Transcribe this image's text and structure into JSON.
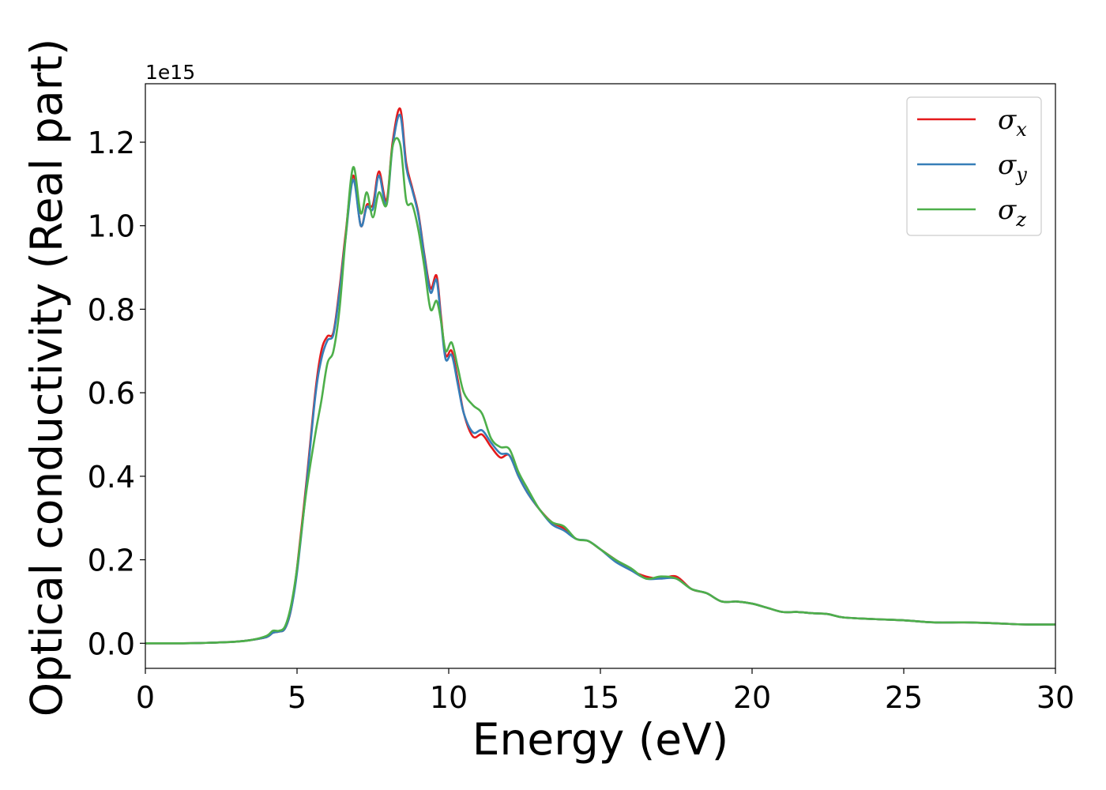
{
  "chart_data": {
    "type": "line",
    "xlabel": "Energy (eV)",
    "ylabel": "Optical conductivity (Real part)",
    "y_offset_label": "1e15",
    "xlim": [
      0,
      30
    ],
    "ylim": [
      -0.06,
      1.34
    ],
    "x_ticks": [
      0,
      5,
      10,
      15,
      20,
      25,
      30
    ],
    "x_tick_labels": [
      "0",
      "5",
      "10",
      "15",
      "20",
      "25",
      "30"
    ],
    "y_ticks": [
      0.0,
      0.2,
      0.4,
      0.6,
      0.8,
      1.0,
      1.2
    ],
    "y_tick_labels": [
      "0.0",
      "0.2",
      "0.4",
      "0.6",
      "0.8",
      "1.0",
      "1.2"
    ],
    "grid": false,
    "legend_position": "top-right",
    "series": [
      {
        "name": "σx",
        "name_base": "σ",
        "name_sub": "x",
        "color": "#e41a1c",
        "x": [
          0,
          1,
          2,
          3,
          3.5,
          4.0,
          4.2,
          4.4,
          4.6,
          4.8,
          5.0,
          5.3,
          5.6,
          5.8,
          6.0,
          6.2,
          6.4,
          6.6,
          6.85,
          7.1,
          7.3,
          7.5,
          7.7,
          7.95,
          8.15,
          8.4,
          8.6,
          8.8,
          9.0,
          9.2,
          9.4,
          9.6,
          9.75,
          9.9,
          10.1,
          10.3,
          10.5,
          10.8,
          11.1,
          11.4,
          11.7,
          12.0,
          12.3,
          12.6,
          13.0,
          13.4,
          13.8,
          14.2,
          14.6,
          15.0,
          15.5,
          16.0,
          16.5,
          17.0,
          17.5,
          18.0,
          18.5,
          19.0,
          19.5,
          20.0,
          20.5,
          21.0,
          21.5,
          22.0,
          22.5,
          23.0,
          24.0,
          25.0,
          26.0,
          27.0,
          28.0,
          29.0,
          30.0
        ],
        "values": [
          0.0,
          0.0,
          0.001,
          0.004,
          0.008,
          0.015,
          0.025,
          0.028,
          0.035,
          0.08,
          0.18,
          0.38,
          0.6,
          0.7,
          0.735,
          0.745,
          0.85,
          0.98,
          1.12,
          1.0,
          1.05,
          1.05,
          1.13,
          1.06,
          1.2,
          1.28,
          1.15,
          1.09,
          1.03,
          0.93,
          0.85,
          0.88,
          0.78,
          0.69,
          0.7,
          0.63,
          0.55,
          0.495,
          0.5,
          0.47,
          0.445,
          0.45,
          0.4,
          0.36,
          0.32,
          0.29,
          0.275,
          0.25,
          0.245,
          0.225,
          0.2,
          0.175,
          0.16,
          0.155,
          0.16,
          0.13,
          0.12,
          0.1,
          0.1,
          0.095,
          0.085,
          0.075,
          0.075,
          0.072,
          0.07,
          0.062,
          0.058,
          0.055,
          0.05,
          0.05,
          0.048,
          0.045,
          0.045
        ]
      },
      {
        "name": "σy",
        "name_base": "σ",
        "name_sub": "y",
        "color": "#377eb8",
        "x": [
          0,
          1,
          2,
          3,
          3.5,
          4.0,
          4.2,
          4.4,
          4.6,
          4.8,
          5.0,
          5.3,
          5.6,
          5.8,
          6.0,
          6.2,
          6.4,
          6.6,
          6.85,
          7.1,
          7.3,
          7.5,
          7.7,
          7.95,
          8.15,
          8.4,
          8.6,
          8.8,
          9.0,
          9.2,
          9.4,
          9.6,
          9.75,
          9.9,
          10.1,
          10.3,
          10.5,
          10.8,
          11.1,
          11.4,
          11.7,
          12.0,
          12.3,
          12.6,
          13.0,
          13.4,
          13.8,
          14.2,
          14.6,
          15.0,
          15.5,
          16.0,
          16.5,
          17.0,
          17.5,
          18.0,
          18.5,
          19.0,
          19.5,
          20.0,
          20.5,
          21.0,
          21.5,
          22.0,
          22.5,
          23.0,
          24.0,
          25.0,
          26.0,
          27.0,
          28.0,
          29.0,
          30.0
        ],
        "values": [
          0.0,
          0.0,
          0.001,
          0.004,
          0.008,
          0.015,
          0.025,
          0.028,
          0.035,
          0.08,
          0.17,
          0.37,
          0.59,
          0.68,
          0.725,
          0.74,
          0.84,
          0.97,
          1.11,
          1.0,
          1.045,
          1.04,
          1.12,
          1.05,
          1.19,
          1.265,
          1.14,
          1.085,
          1.025,
          0.925,
          0.84,
          0.87,
          0.77,
          0.68,
          0.69,
          0.62,
          0.55,
          0.505,
          0.51,
          0.48,
          0.455,
          0.45,
          0.4,
          0.36,
          0.32,
          0.285,
          0.27,
          0.25,
          0.245,
          0.225,
          0.195,
          0.175,
          0.155,
          0.155,
          0.155,
          0.13,
          0.12,
          0.1,
          0.1,
          0.095,
          0.085,
          0.075,
          0.075,
          0.072,
          0.07,
          0.062,
          0.058,
          0.055,
          0.05,
          0.05,
          0.048,
          0.045,
          0.045
        ]
      },
      {
        "name": "σz",
        "name_base": "σ",
        "name_sub": "z",
        "color": "#4daf4a",
        "x": [
          0,
          1,
          2,
          3,
          3.5,
          4.0,
          4.2,
          4.4,
          4.6,
          4.8,
          5.0,
          5.3,
          5.6,
          5.8,
          6.0,
          6.2,
          6.4,
          6.6,
          6.85,
          7.1,
          7.3,
          7.5,
          7.7,
          7.95,
          8.15,
          8.4,
          8.6,
          8.8,
          9.0,
          9.2,
          9.4,
          9.6,
          9.75,
          9.9,
          10.1,
          10.3,
          10.5,
          10.8,
          11.1,
          11.4,
          11.7,
          12.0,
          12.3,
          12.6,
          13.0,
          13.4,
          13.8,
          14.2,
          14.6,
          15.0,
          15.5,
          16.0,
          16.5,
          17.0,
          17.5,
          18.0,
          18.5,
          19.0,
          19.5,
          20.0,
          20.5,
          21.0,
          21.5,
          22.0,
          22.5,
          23.0,
          24.0,
          25.0,
          26.0,
          27.0,
          28.0,
          29.0,
          30.0
        ],
        "values": [
          0.0,
          0.0,
          0.001,
          0.004,
          0.008,
          0.018,
          0.03,
          0.03,
          0.04,
          0.09,
          0.18,
          0.36,
          0.5,
          0.58,
          0.67,
          0.7,
          0.8,
          0.97,
          1.14,
          1.03,
          1.08,
          1.02,
          1.08,
          1.05,
          1.19,
          1.195,
          1.06,
          1.05,
          0.99,
          0.9,
          0.8,
          0.82,
          0.77,
          0.7,
          0.72,
          0.66,
          0.6,
          0.57,
          0.55,
          0.49,
          0.47,
          0.465,
          0.41,
          0.37,
          0.32,
          0.29,
          0.28,
          0.25,
          0.245,
          0.225,
          0.2,
          0.18,
          0.155,
          0.16,
          0.155,
          0.13,
          0.12,
          0.1,
          0.1,
          0.095,
          0.085,
          0.075,
          0.075,
          0.072,
          0.07,
          0.062,
          0.058,
          0.055,
          0.05,
          0.05,
          0.048,
          0.045,
          0.045
        ]
      }
    ]
  }
}
